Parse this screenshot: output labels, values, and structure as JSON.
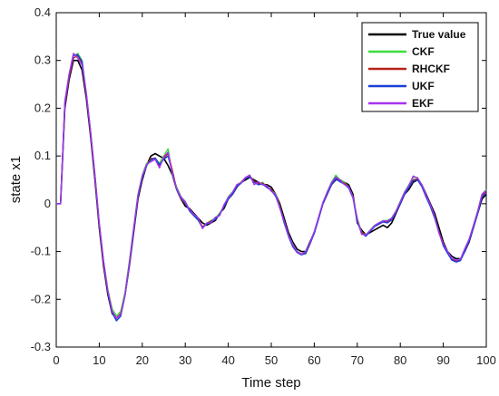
{
  "chart_data": {
    "type": "line",
    "xlabel": "Time step",
    "ylabel": "state x1",
    "xlim": [
      0,
      100
    ],
    "ylim": [
      -0.3,
      0.4
    ],
    "xticks": [
      0,
      10,
      20,
      30,
      40,
      50,
      60,
      70,
      80,
      90,
      100
    ],
    "yticks": [
      -0.3,
      -0.2,
      -0.1,
      0,
      0.1,
      0.2,
      0.3,
      0.4
    ],
    "xtick_labels": [
      "0",
      "10",
      "20",
      "30",
      "40",
      "50",
      "60",
      "70",
      "80",
      "90",
      "100"
    ],
    "ytick_labels": [
      "-0.3",
      "-0.2",
      "-0.1",
      "0",
      "0.1",
      "0.2",
      "0.3",
      "0.4"
    ],
    "grid": false,
    "legend_position": "top-right",
    "x": [
      0,
      1,
      2,
      3,
      4,
      5,
      6,
      7,
      8,
      9,
      10,
      11,
      12,
      13,
      14,
      15,
      16,
      17,
      18,
      19,
      20,
      21,
      22,
      23,
      24,
      25,
      26,
      27,
      28,
      29,
      30,
      31,
      32,
      33,
      34,
      35,
      36,
      37,
      38,
      39,
      40,
      41,
      42,
      43,
      44,
      45,
      46,
      47,
      48,
      49,
      50,
      51,
      52,
      53,
      54,
      55,
      56,
      57,
      58,
      59,
      60,
      61,
      62,
      63,
      64,
      65,
      66,
      67,
      68,
      69,
      70,
      71,
      72,
      73,
      74,
      75,
      76,
      77,
      78,
      79,
      80,
      81,
      82,
      83,
      84,
      85,
      86,
      87,
      88,
      89,
      90,
      91,
      92,
      93,
      94,
      95,
      96,
      97,
      98,
      99,
      100
    ],
    "series": [
      {
        "name": "True value",
        "color": "#000000",
        "values": [
          0,
          0,
          0.2,
          0.26,
          0.3,
          0.3,
          0.28,
          0.22,
          0.14,
          0.05,
          -0.05,
          -0.13,
          -0.19,
          -0.23,
          -0.24,
          -0.23,
          -0.19,
          -0.13,
          -0.06,
          0.01,
          0.05,
          0.08,
          0.1,
          0.105,
          0.1,
          0.095,
          0.08,
          0.06,
          0.03,
          0.01,
          -0.005,
          -0.01,
          -0.02,
          -0.03,
          -0.04,
          -0.045,
          -0.04,
          -0.035,
          -0.02,
          -0.01,
          0.01,
          0.02,
          0.035,
          0.045,
          0.05,
          0.055,
          0.05,
          0.045,
          0.04,
          0.04,
          0.035,
          0.02,
          0,
          -0.03,
          -0.06,
          -0.08,
          -0.095,
          -0.1,
          -0.1,
          -0.08,
          -0.06,
          -0.03,
          0,
          0.02,
          0.04,
          0.05,
          0.05,
          0.045,
          0.04,
          0.02,
          -0.04,
          -0.055,
          -0.065,
          -0.06,
          -0.055,
          -0.05,
          -0.045,
          -0.05,
          -0.04,
          -0.02,
          0,
          0.02,
          0.03,
          0.045,
          0.05,
          0.04,
          0.02,
          0,
          -0.02,
          -0.05,
          -0.08,
          -0.1,
          -0.11,
          -0.115,
          -0.115,
          -0.1,
          -0.08,
          -0.05,
          -0.02,
          0.01,
          0.02
        ]
      },
      {
        "name": "CKF",
        "color": "#3ddc3d",
        "values": [
          0,
          0,
          0.21,
          0.27,
          0.31,
          0.315,
          0.3,
          0.23,
          0.15,
          0.06,
          -0.04,
          -0.12,
          -0.18,
          -0.22,
          -0.235,
          -0.225,
          -0.185,
          -0.12,
          -0.05,
          0.02,
          0.06,
          0.085,
          0.09,
          0.095,
          0.085,
          0.1,
          0.115,
          0.06,
          0.035,
          0.015,
          0.005,
          -0.015,
          -0.025,
          -0.035,
          -0.05,
          -0.04,
          -0.035,
          -0.03,
          -0.02,
          -0.005,
          0.015,
          0.025,
          0.04,
          0.045,
          0.055,
          0.06,
          0.045,
          0.04,
          0.045,
          0.035,
          0.03,
          0.02,
          -0.005,
          -0.04,
          -0.065,
          -0.085,
          -0.1,
          -0.105,
          -0.105,
          -0.085,
          -0.06,
          -0.03,
          0,
          0.025,
          0.045,
          0.06,
          0.05,
          0.045,
          0.035,
          0.015,
          -0.03,
          -0.06,
          -0.065,
          -0.055,
          -0.045,
          -0.04,
          -0.035,
          -0.035,
          -0.03,
          -0.015,
          0.005,
          0.025,
          0.04,
          0.055,
          0.055,
          0.04,
          0.015,
          -0.005,
          -0.03,
          -0.06,
          -0.085,
          -0.1,
          -0.115,
          -0.12,
          -0.115,
          -0.095,
          -0.075,
          -0.045,
          -0.015,
          0.02,
          0.03
        ]
      },
      {
        "name": "RHCKF",
        "color": "#b52418",
        "values": [
          0,
          0,
          0.205,
          0.265,
          0.305,
          0.31,
          0.295,
          0.225,
          0.145,
          0.055,
          -0.045,
          -0.125,
          -0.185,
          -0.225,
          -0.24,
          -0.23,
          -0.19,
          -0.125,
          -0.055,
          0.015,
          0.055,
          0.08,
          0.095,
          0.095,
          0.08,
          0.095,
          0.105,
          0.07,
          0.03,
          0.01,
          0,
          -0.012,
          -0.022,
          -0.032,
          -0.048,
          -0.042,
          -0.036,
          -0.032,
          -0.022,
          -0.005,
          0.012,
          0.022,
          0.038,
          0.045,
          0.055,
          0.058,
          0.047,
          0.042,
          0.043,
          0.036,
          0.03,
          0.018,
          -0.006,
          -0.038,
          -0.066,
          -0.088,
          -0.1,
          -0.105,
          -0.103,
          -0.083,
          -0.061,
          -0.031,
          0.001,
          0.022,
          0.042,
          0.055,
          0.048,
          0.043,
          0.035,
          0.015,
          -0.035,
          -0.06,
          -0.066,
          -0.057,
          -0.047,
          -0.042,
          -0.037,
          -0.038,
          -0.032,
          -0.016,
          0.003,
          0.022,
          0.036,
          0.05,
          0.052,
          0.038,
          0.016,
          -0.004,
          -0.028,
          -0.058,
          -0.085,
          -0.102,
          -0.116,
          -0.12,
          -0.117,
          -0.098,
          -0.077,
          -0.048,
          -0.017,
          0.018,
          0.025
        ]
      },
      {
        "name": "UKF",
        "color": "#1a3fd6",
        "values": [
          0,
          0,
          0.21,
          0.27,
          0.31,
          0.312,
          0.298,
          0.228,
          0.148,
          0.058,
          -0.042,
          -0.122,
          -0.185,
          -0.228,
          -0.245,
          -0.235,
          -0.192,
          -0.128,
          -0.055,
          0.015,
          0.055,
          0.08,
          0.092,
          0.096,
          0.082,
          0.093,
          0.1,
          0.065,
          0.03,
          0.012,
          0.002,
          -0.015,
          -0.025,
          -0.034,
          -0.05,
          -0.043,
          -0.038,
          -0.033,
          -0.022,
          -0.006,
          0.01,
          0.02,
          0.036,
          0.043,
          0.053,
          0.056,
          0.045,
          0.04,
          0.041,
          0.034,
          0.028,
          0.016,
          -0.008,
          -0.04,
          -0.068,
          -0.09,
          -0.102,
          -0.107,
          -0.104,
          -0.084,
          -0.062,
          -0.032,
          0,
          0.02,
          0.04,
          0.052,
          0.046,
          0.041,
          0.033,
          0.012,
          -0.037,
          -0.062,
          -0.068,
          -0.058,
          -0.048,
          -0.043,
          -0.038,
          -0.04,
          -0.034,
          -0.018,
          0,
          0.02,
          0.034,
          0.048,
          0.05,
          0.036,
          0.014,
          -0.006,
          -0.03,
          -0.06,
          -0.088,
          -0.104,
          -0.118,
          -0.122,
          -0.119,
          -0.1,
          -0.078,
          -0.05,
          -0.02,
          0.015,
          0.022
        ]
      },
      {
        "name": "EKF",
        "color": "#a533f2",
        "values": [
          0,
          0,
          0.215,
          0.272,
          0.315,
          0.305,
          0.29,
          0.232,
          0.15,
          0.06,
          -0.04,
          -0.12,
          -0.182,
          -0.225,
          -0.24,
          -0.232,
          -0.19,
          -0.125,
          -0.052,
          0.018,
          0.058,
          0.082,
          0.088,
          0.093,
          0.075,
          0.098,
          0.108,
          0.062,
          0.032,
          0.014,
          0.004,
          -0.012,
          -0.022,
          -0.03,
          -0.052,
          -0.04,
          -0.04,
          -0.028,
          -0.025,
          -0.002,
          0.013,
          0.024,
          0.04,
          0.044,
          0.055,
          0.06,
          0.04,
          0.046,
          0.04,
          0.038,
          0.026,
          0.02,
          -0.01,
          -0.036,
          -0.065,
          -0.086,
          -0.1,
          -0.106,
          -0.1,
          -0.082,
          -0.058,
          -0.028,
          0.003,
          0.024,
          0.044,
          0.056,
          0.05,
          0.04,
          0.036,
          0.014,
          -0.032,
          -0.064,
          -0.065,
          -0.056,
          -0.046,
          -0.04,
          -0.036,
          -0.036,
          -0.03,
          -0.016,
          0.004,
          0.024,
          0.038,
          0.058,
          0.054,
          0.04,
          0.018,
          -0.002,
          -0.026,
          -0.062,
          -0.084,
          -0.1,
          -0.114,
          -0.118,
          -0.116,
          -0.094,
          -0.074,
          -0.046,
          -0.016,
          0.02,
          0.028
        ]
      }
    ]
  }
}
